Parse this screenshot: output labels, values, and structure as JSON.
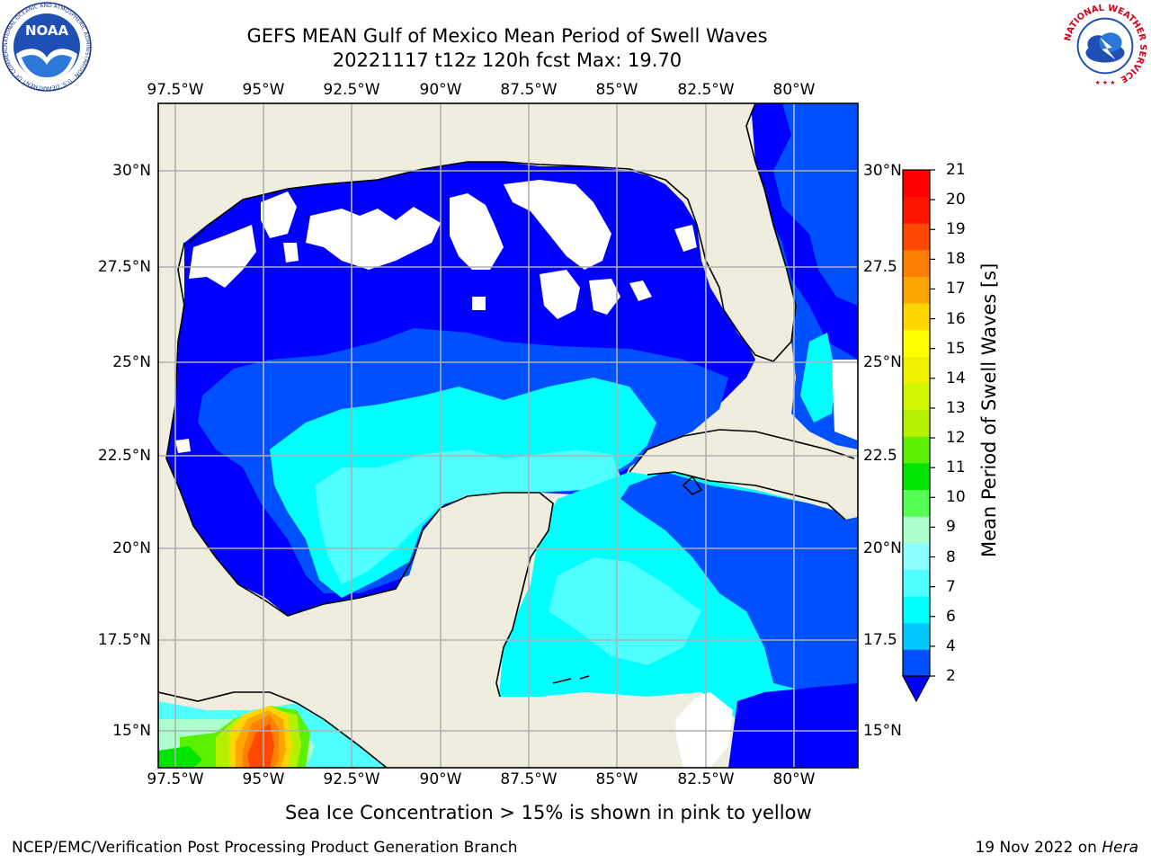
{
  "title": {
    "line1": "GEFS MEAN Gulf of Mexico Mean Period of Swell Waves",
    "line2": "20221117 t12z 120h fcst   Max: 19.70"
  },
  "longitude_ticks": [
    "97.5°W",
    "95°W",
    "92.5°W",
    "90°W",
    "87.5°W",
    "85°W",
    "82.5°W",
    "80°W"
  ],
  "latitude_ticks_left": [
    "30°N",
    "27.5°N",
    "25°N",
    "22.5°N",
    "20°N",
    "17.5°N",
    "15°N"
  ],
  "latitude_ticks_right": [
    "30°N",
    "27.5",
    "25°N",
    "22.5",
    "20°N",
    "17.5",
    "15°N"
  ],
  "colorbar": {
    "label": "Mean Period of Swell Waves [s]",
    "ticks": [
      "2",
      "4",
      "6",
      "7",
      "8",
      "9",
      "10",
      "11",
      "12",
      "13",
      "14",
      "15",
      "16",
      "17",
      "18",
      "19",
      "20",
      "21"
    ],
    "colors": [
      "#0050ff",
      "#00c8ff",
      "#00ffff",
      "#50ffff",
      "#8cffff",
      "#aaffcc",
      "#55ff55",
      "#00e400",
      "#5cf000",
      "#b4f000",
      "#d2f500",
      "#f0f000",
      "#ffff00",
      "#ffd700",
      "#ffa500",
      "#ff7f00",
      "#ff4800",
      "#ff1400",
      "#ff0000"
    ],
    "extend_color": "#0000ff"
  },
  "colors": {
    "land": "#eeedde",
    "deep_blue": "#0000ff",
    "blue": "#0050ff",
    "cyan": "#00ffff",
    "light_cyan": "#50ffff",
    "grid": "#b0b0b0"
  },
  "caption": "Sea Ice Concentration > 15% is shown in pink to yellow",
  "footer": {
    "left": "NCEP/EMC/Verification Post Processing Product Generation Branch",
    "right_prefix": "19 Nov 2022 on ",
    "right_italic": "Hera"
  },
  "logos": {
    "left": "NOAA",
    "left_ring": "NATIONAL OCEANIC AND ATMOSPHERIC ADMINISTRATION · U.S. DEPARTMENT OF COMMERCE",
    "right_ring": "NATIONAL WEATHER SERVICE"
  }
}
